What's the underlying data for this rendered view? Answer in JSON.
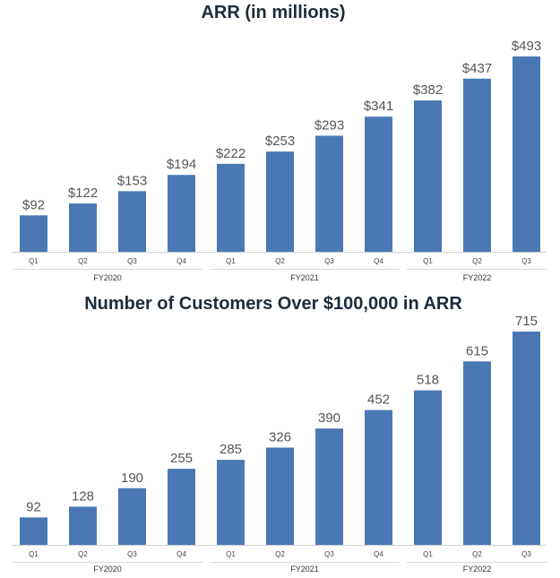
{
  "chart_data": [
    {
      "type": "bar",
      "title": "ARR (in millions)",
      "categories": [
        "Q1",
        "Q2",
        "Q3",
        "Q4",
        "Q1",
        "Q2",
        "Q3",
        "Q4",
        "Q1",
        "Q2",
        "Q3"
      ],
      "groups": [
        {
          "label": "FY2020",
          "count": 4
        },
        {
          "label": "FY2021",
          "count": 4
        },
        {
          "label": "FY2022",
          "count": 3
        }
      ],
      "values": [
        92,
        122,
        153,
        194,
        222,
        253,
        293,
        341,
        382,
        437,
        493
      ],
      "value_labels": [
        "$92",
        "$122",
        "$153",
        "$194",
        "$222",
        "$253",
        "$293",
        "$341",
        "$382",
        "$437",
        "$493"
      ],
      "ylim": [
        0,
        493
      ],
      "bar_color": "#4a78b5"
    },
    {
      "type": "bar",
      "title": "Number of Customers Over $100,000 in ARR",
      "categories": [
        "Q1",
        "Q2",
        "Q3",
        "Q4",
        "Q1",
        "Q2",
        "Q3",
        "Q4",
        "Q1",
        "Q2",
        "Q3"
      ],
      "groups": [
        {
          "label": "FY2020",
          "count": 4
        },
        {
          "label": "FY2021",
          "count": 4
        },
        {
          "label": "FY2022",
          "count": 3
        }
      ],
      "values": [
        92,
        128,
        190,
        255,
        285,
        326,
        390,
        452,
        518,
        615,
        715
      ],
      "value_labels": [
        "92",
        "128",
        "190",
        "255",
        "285",
        "326",
        "390",
        "452",
        "518",
        "615",
        "715"
      ],
      "ylim": [
        0,
        715
      ],
      "bar_color": "#4a78b5"
    }
  ]
}
